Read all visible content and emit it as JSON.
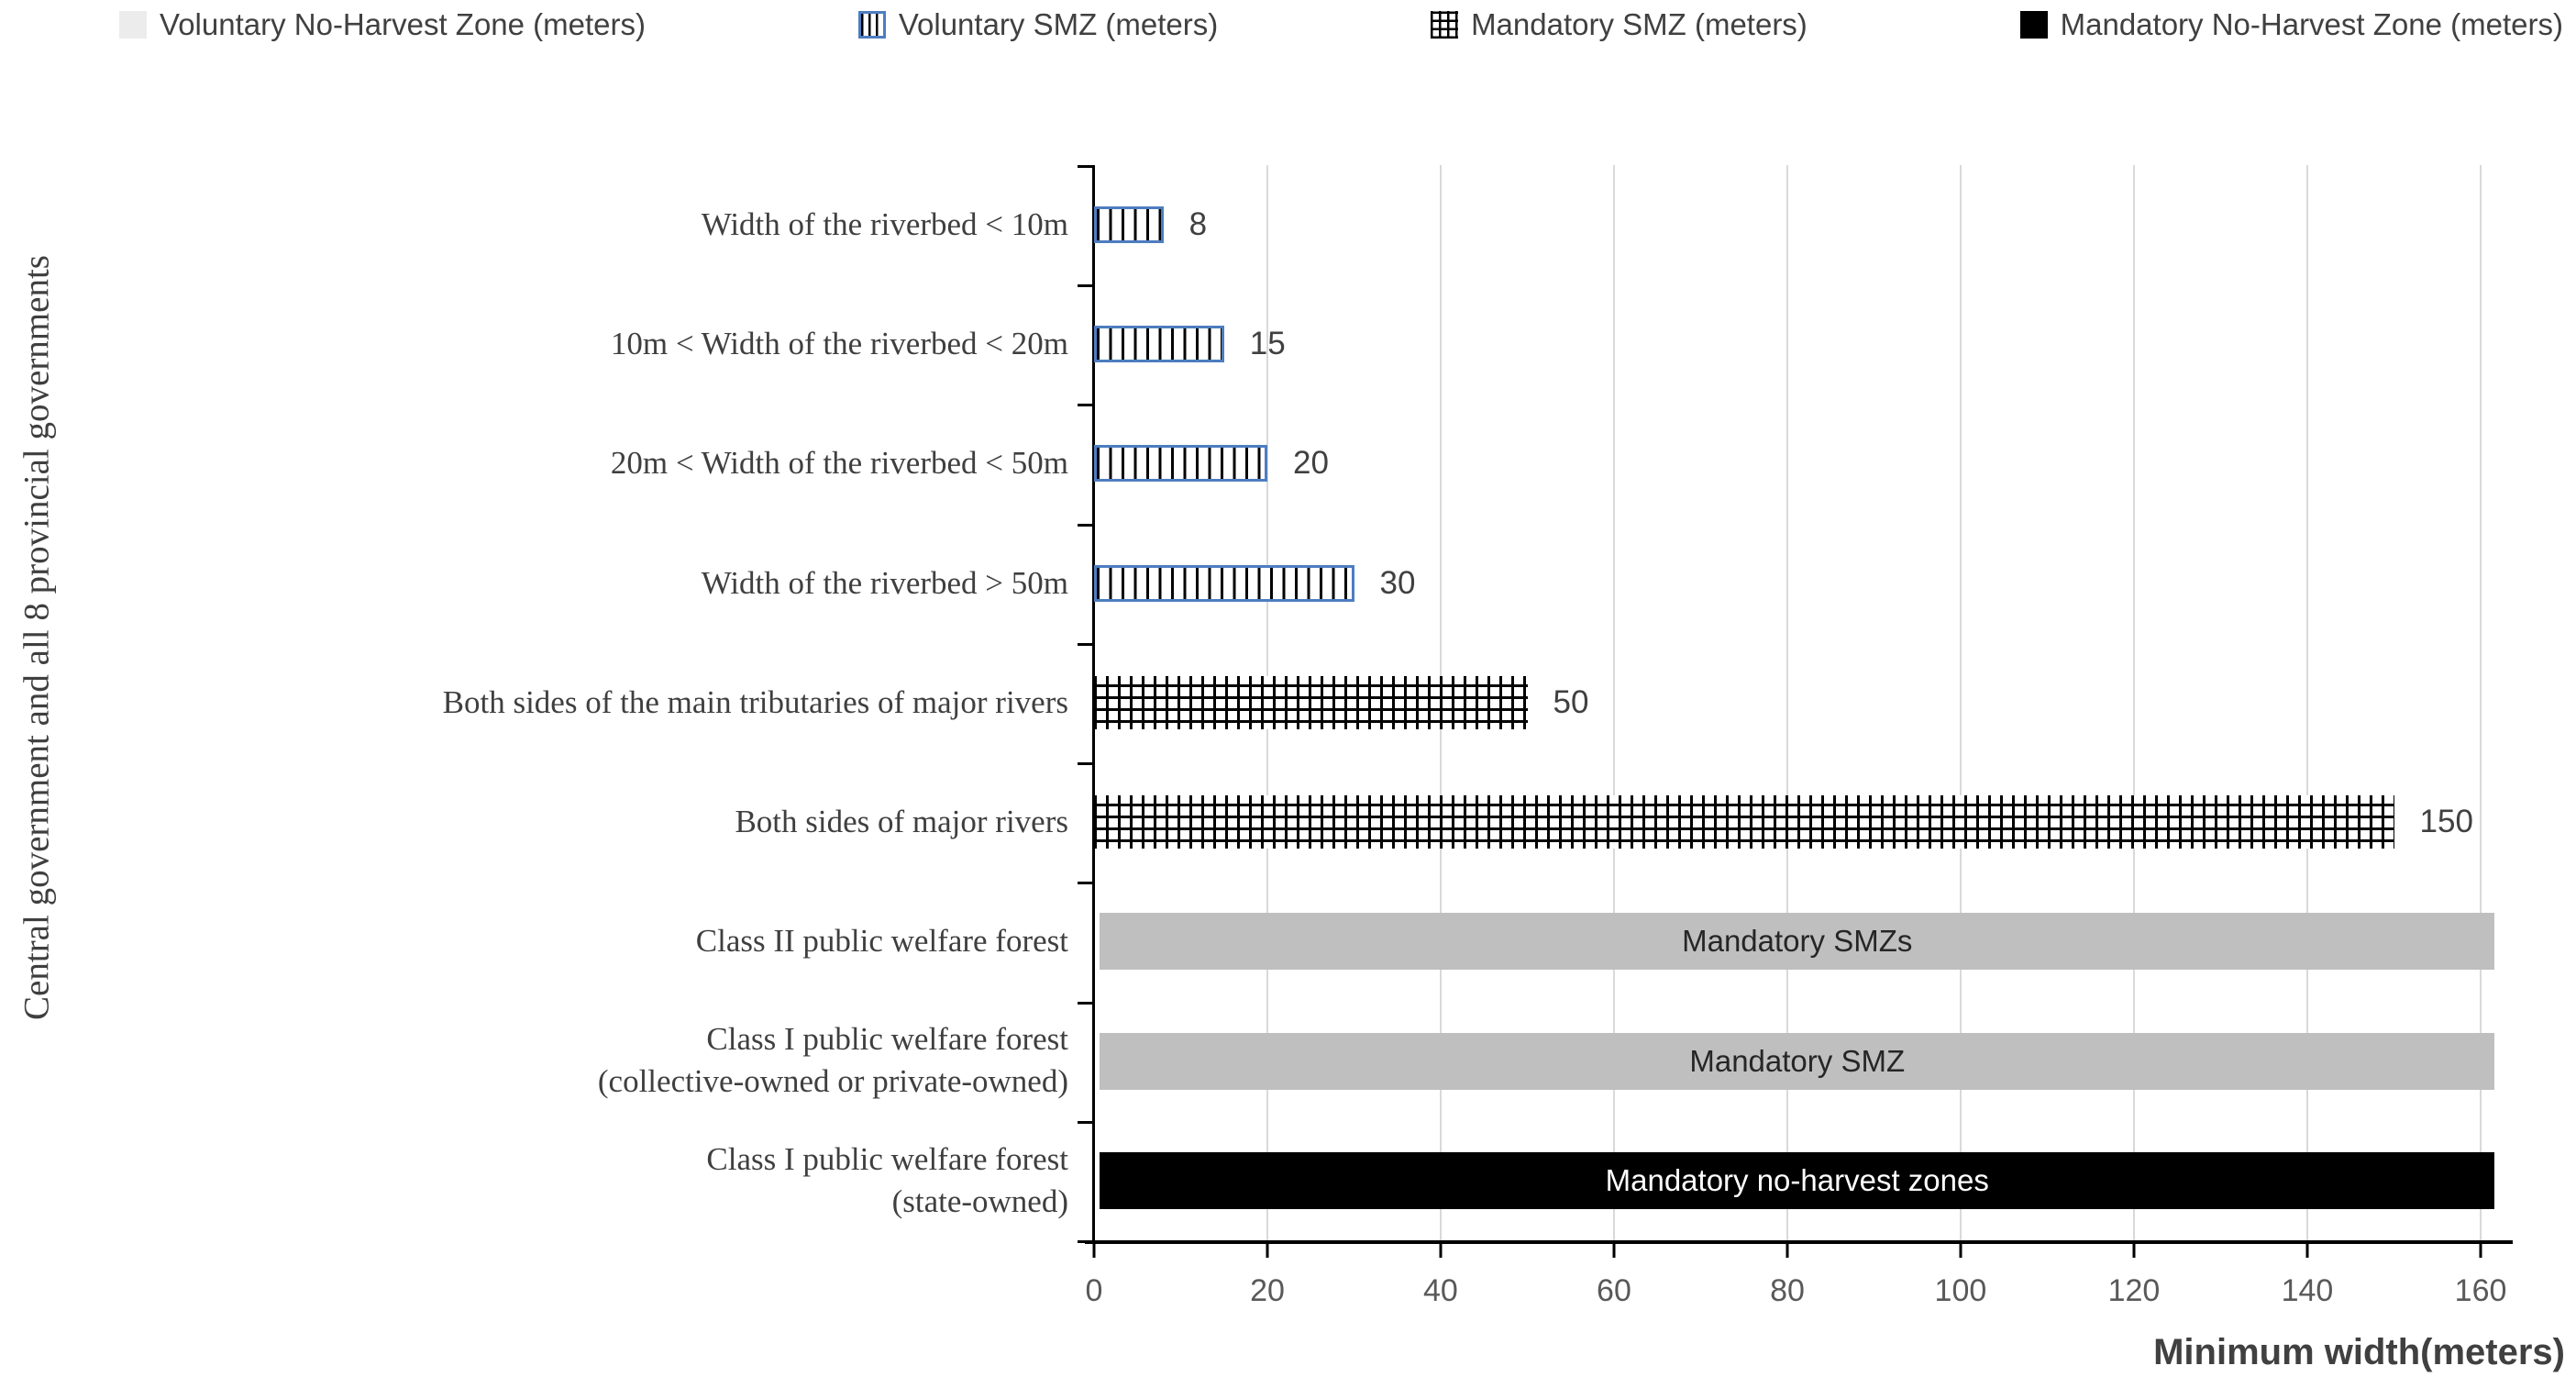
{
  "chart_data": {
    "type": "bar",
    "orientation": "horizontal",
    "xlabel": "Minimum width(meters)",
    "ylabel": "Central government and all 8 provincial governments",
    "xlim": [
      0,
      160
    ],
    "x_ticks": [
      "0",
      "20",
      "40",
      "60",
      "80",
      "100",
      "120",
      "140",
      "160"
    ],
    "grid": "vertical",
    "legend_position": "top",
    "legend": [
      "Voluntary No-Harvest Zone (meters)",
      "Voluntary SMZ (meters)",
      "Mandatory SMZ (meters)",
      "Mandatory No-Harvest Zone (meters)"
    ],
    "bars": [
      {
        "category": "Width of the riverbed < 10m",
        "series": "Voluntary SMZ (meters)",
        "value": 8,
        "label": "8"
      },
      {
        "category": "10m < Width of the riverbed < 20m",
        "series": "Voluntary SMZ (meters)",
        "value": 15,
        "label": "15"
      },
      {
        "category": "20m < Width of the riverbed < 50m",
        "series": "Voluntary SMZ (meters)",
        "value": 20,
        "label": "20"
      },
      {
        "category": "Width of the riverbed > 50m",
        "series": "Voluntary SMZ (meters)",
        "value": 30,
        "label": "30"
      },
      {
        "category": "Both sides of the main tributaries of major rivers",
        "series": "Mandatory SMZ (meters)",
        "value": 50,
        "label": "50"
      },
      {
        "category": "Both sides of major rivers",
        "series": "Mandatory SMZ (meters)",
        "value": 150,
        "label": "150"
      },
      {
        "category": "Class II public welfare forest",
        "series": "Voluntary No-Harvest Zone (meters)",
        "value": 161,
        "label": "Mandatory SMZs",
        "label_inside": true
      },
      {
        "category": "Class I public welfare forest",
        "category_line2": "(collective-owned or private-owned)",
        "series": "Voluntary No-Harvest Zone (meters)",
        "value": 161,
        "label": "Mandatory SMZ",
        "label_inside": true
      },
      {
        "category": "Class I public welfare forest",
        "category_line2": "(state-owned)",
        "series": "Mandatory No-Harvest Zone (meters)",
        "value": 161,
        "label": "Mandatory no-harvest zones",
        "label_inside": true
      }
    ],
    "colors": {
      "gray_bar": "#BFBFBF",
      "black_bar": "#000000",
      "blue_bar_border": "#4E7DC0",
      "light_gray_legend": "#ECECEC",
      "gridline": "#D9D9D9"
    }
  }
}
